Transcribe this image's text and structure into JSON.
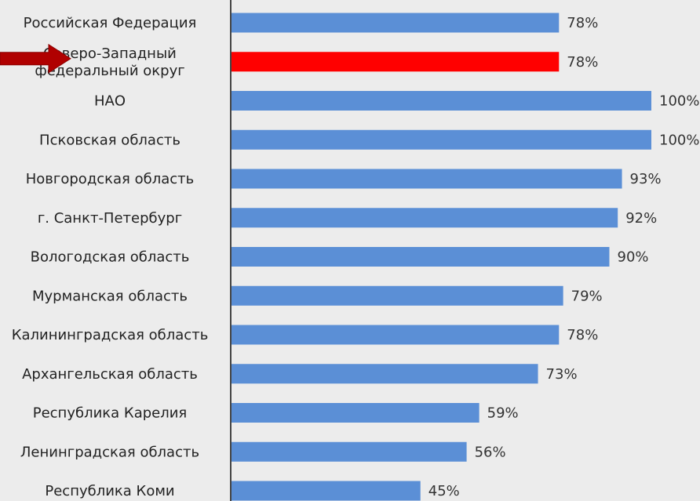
{
  "chart_data": {
    "type": "bar",
    "orientation": "horizontal",
    "categories": [
      [
        "Российская Федерация"
      ],
      [
        "Северо-Западный",
        "федеральный округ"
      ],
      [
        "НАО"
      ],
      [
        "Псковская область"
      ],
      [
        "Новгородская область"
      ],
      [
        "г. Санкт-Петербург"
      ],
      [
        "Вологодская область"
      ],
      [
        "Мурманская область"
      ],
      [
        "Калининградская область"
      ],
      [
        "Архангельская область"
      ],
      [
        "Республика Карелия"
      ],
      [
        "Ленинградская область"
      ],
      [
        "Республика Коми"
      ]
    ],
    "values": [
      78,
      78,
      100,
      100,
      93,
      92,
      90,
      79,
      78,
      73,
      59,
      56,
      45
    ],
    "value_labels": [
      "78%",
      "78%",
      "100%",
      "100%",
      "93%",
      "92%",
      "90%",
      "79%",
      "78%",
      "73%",
      "59%",
      "56%",
      "45%"
    ],
    "xlim": [
      0,
      100
    ],
    "highlight_index": 1,
    "grid": false,
    "colors": {
      "bar": "#5b8fd6",
      "highlight": "#ff0000",
      "arrow": "#b00000",
      "axis": "#444444",
      "background": "#ececec"
    }
  },
  "annotations": {
    "arrow_icon": "right-arrow-icon"
  }
}
